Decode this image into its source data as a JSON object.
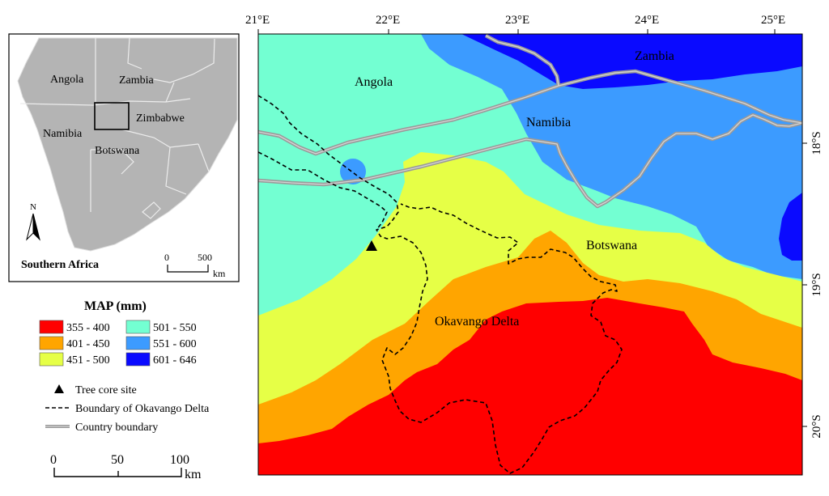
{
  "inset": {
    "labels": {
      "angola": "Angola",
      "zambia": "Zambia",
      "namibia": "Namibia",
      "zimbabwe": "Zimbabwe",
      "botswana": "Botswana"
    },
    "north": "N",
    "title": "Southern Africa",
    "scale": {
      "zero": "0",
      "max": "500",
      "unit": "km"
    }
  },
  "legend": {
    "title": "MAP (mm)",
    "classes": [
      {
        "label": "355 - 400",
        "color": "#ff0000"
      },
      {
        "label": "401 - 450",
        "color": "#ffa500"
      },
      {
        "label": "451 - 500",
        "color": "#e6ff46"
      },
      {
        "label": "501 - 550",
        "color": "#73ffd2"
      },
      {
        "label": "551 - 600",
        "color": "#3c9bff"
      },
      {
        "label": "601 - 646",
        "color": "#0a0aff"
      }
    ],
    "symbols": {
      "tree_core": "Tree core site",
      "delta_boundary": "Boundary of Okavango Delta",
      "country_boundary": "Country boundary"
    }
  },
  "scale": {
    "t0": "0",
    "t50": "50",
    "t100": "100",
    "unit": "km"
  },
  "map": {
    "labels": {
      "zambia": "Zambia",
      "angola": "Angola",
      "namibia": "Namibia",
      "botswana": "Botswana",
      "okavango": "Okavango Delta"
    },
    "lon_ticks": [
      "21°E",
      "22°E",
      "23°E",
      "24°E",
      "25°E"
    ],
    "lat_ticks": [
      "18°S",
      "19°S",
      "20°S"
    ]
  }
}
